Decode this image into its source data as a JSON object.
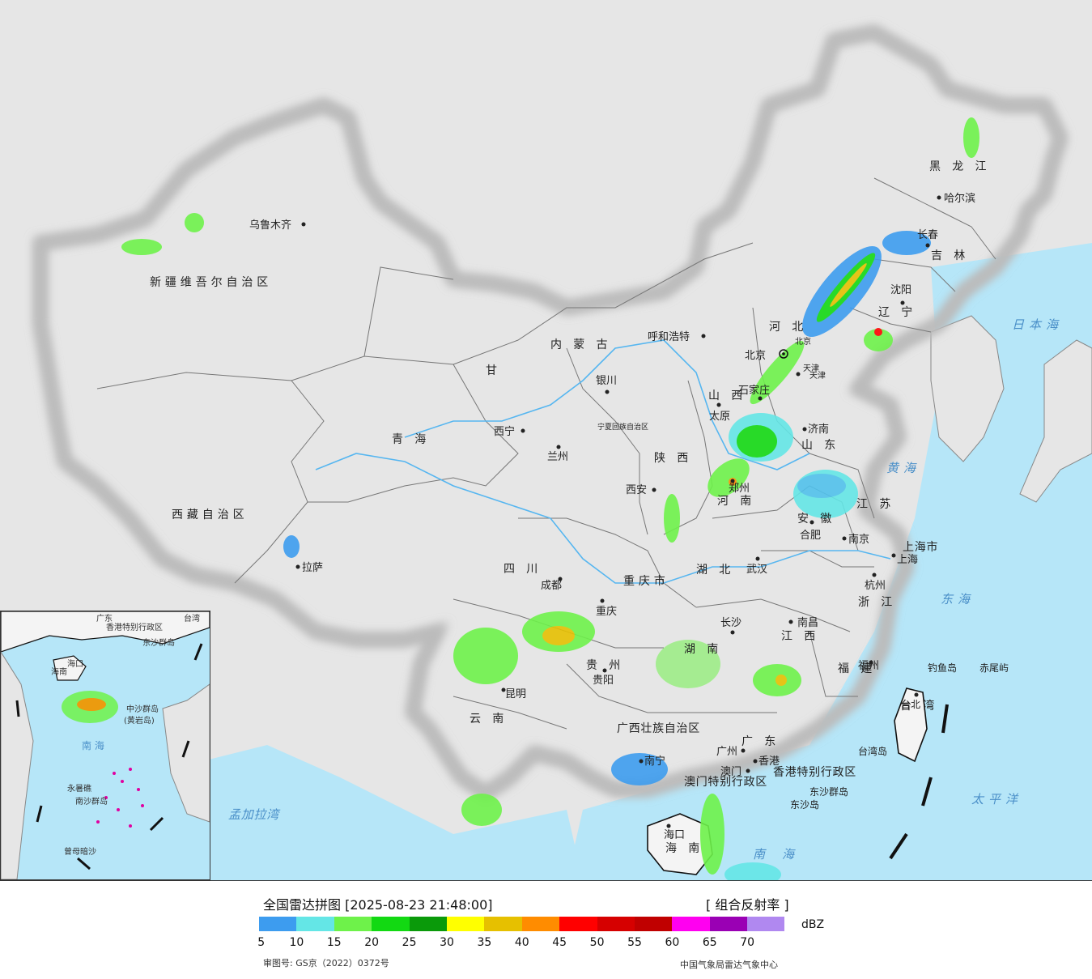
{
  "map": {
    "colors": {
      "sea": "#b6e6f8",
      "land": "#f4f4f4",
      "foreign": "#e6e6e6",
      "border": "#111111",
      "province": "#777777",
      "river": "#56b6f0"
    },
    "provinces": [
      {
        "id": "xinjiang",
        "text": "新疆维吾尔自治区"
      },
      {
        "id": "xizang",
        "text": "西藏自治区"
      },
      {
        "id": "qinghai",
        "text": "青 海"
      },
      {
        "id": "gansu",
        "text": "甘"
      },
      {
        "id": "neimenggu",
        "text": "内 蒙 古"
      },
      {
        "id": "ningxia",
        "text": "宁夏回族自治区"
      },
      {
        "id": "shaanxi",
        "text": "陕 西"
      },
      {
        "id": "shanxi",
        "text": "山 西"
      },
      {
        "id": "hebei",
        "text": "河 北"
      },
      {
        "id": "heilongjiang",
        "text": "黑 龙 江"
      },
      {
        "id": "jilin",
        "text": "吉 林"
      },
      {
        "id": "liaoning",
        "text": "辽 宁"
      },
      {
        "id": "shandong",
        "text": "山 东"
      },
      {
        "id": "henan",
        "text": "河 南"
      },
      {
        "id": "jiangsu",
        "text": "江 苏"
      },
      {
        "id": "anhui",
        "text": "安 徽"
      },
      {
        "id": "sichuan",
        "text": "四 川"
      },
      {
        "id": "chongqing",
        "text": "重庆市"
      },
      {
        "id": "hubei",
        "text": "湖 北"
      },
      {
        "id": "hunan",
        "text": "湖 南"
      },
      {
        "id": "jiangxi",
        "text": "江 西"
      },
      {
        "id": "zhejiang",
        "text": "浙 江"
      },
      {
        "id": "fujian",
        "text": "福 建"
      },
      {
        "id": "guizhou",
        "text": "贵 州"
      },
      {
        "id": "yunnan",
        "text": "云 南"
      },
      {
        "id": "guangxi",
        "text": "广西壮族自治区"
      },
      {
        "id": "guangdong",
        "text": "广 东"
      },
      {
        "id": "taiwan",
        "text": "台 湾"
      },
      {
        "id": "hainan",
        "text": "海 南"
      },
      {
        "id": "shanghai",
        "text": "上海市"
      },
      {
        "id": "xianggang",
        "text": "香港特别行政区"
      },
      {
        "id": "aomen",
        "text": "澳门特别行政区"
      },
      {
        "id": "tianjin",
        "text": "天津"
      },
      {
        "id": "beijing",
        "text": "北京"
      }
    ],
    "cities": [
      {
        "id": "urumqi",
        "text": "乌鲁木齐"
      },
      {
        "id": "lhasa",
        "text": "拉萨"
      },
      {
        "id": "xining",
        "text": "西宁"
      },
      {
        "id": "lanzhou",
        "text": "兰州"
      },
      {
        "id": "yinchuan",
        "text": "银川"
      },
      {
        "id": "hohhot",
        "text": "呼和浩特"
      },
      {
        "id": "xian",
        "text": "西安"
      },
      {
        "id": "taiyuan",
        "text": "太原"
      },
      {
        "id": "shijiazhuang",
        "text": "石家庄"
      },
      {
        "id": "beijing_c",
        "text": "北京"
      },
      {
        "id": "tianjin_c",
        "text": "天津"
      },
      {
        "id": "jinan",
        "text": "济南"
      },
      {
        "id": "zhengzhou",
        "text": "郑州"
      },
      {
        "id": "harbin",
        "text": "哈尔滨"
      },
      {
        "id": "changchun",
        "text": "长春"
      },
      {
        "id": "shenyang",
        "text": "沈阳"
      },
      {
        "id": "hefei",
        "text": "合肥"
      },
      {
        "id": "nanjing",
        "text": "南京"
      },
      {
        "id": "shanghai_c",
        "text": "上海"
      },
      {
        "id": "hangzhou",
        "text": "杭州"
      },
      {
        "id": "wuhan",
        "text": "武汉"
      },
      {
        "id": "chengdu",
        "text": "成都"
      },
      {
        "id": "chongqing_c",
        "text": "重庆"
      },
      {
        "id": "changsha",
        "text": "长沙"
      },
      {
        "id": "nanchang",
        "text": "南昌"
      },
      {
        "id": "fuzhou",
        "text": "福州"
      },
      {
        "id": "guiyang",
        "text": "贵阳"
      },
      {
        "id": "kunming",
        "text": "昆明"
      },
      {
        "id": "nanning",
        "text": "南宁"
      },
      {
        "id": "guangzhou",
        "text": "广州"
      },
      {
        "id": "macau_c",
        "text": "澳门"
      },
      {
        "id": "hongkong_c",
        "text": "香港"
      },
      {
        "id": "haikou",
        "text": "海口"
      },
      {
        "id": "taibei",
        "text": "台北"
      }
    ],
    "seas": [
      {
        "id": "japan_sea",
        "text": "日本海"
      },
      {
        "id": "yellow_sea",
        "text": "黄海"
      },
      {
        "id": "east_sea",
        "text": "东海"
      },
      {
        "id": "pacific",
        "text": "太平洋"
      },
      {
        "id": "bengal",
        "text": "孟加拉湾"
      },
      {
        "id": "south_sea",
        "text": "南海"
      }
    ],
    "islands": [
      {
        "id": "diaoyu",
        "text": "钓鱼岛"
      },
      {
        "id": "chiwei",
        "text": "赤尾屿"
      },
      {
        "id": "taiwan_dao",
        "text": "台湾岛"
      },
      {
        "id": "dongsha_qundao",
        "text": "东沙群岛"
      },
      {
        "id": "dongsha_dao",
        "text": "东沙岛"
      }
    ],
    "inset": {
      "labels": [
        {
          "id": "i_hk",
          "text": "香港特别行政区"
        },
        {
          "id": "i_gd",
          "text": "广东"
        },
        {
          "id": "i_haikou",
          "text": "海口"
        },
        {
          "id": "i_hn",
          "text": "海南"
        },
        {
          "id": "i_dongsha",
          "text": "东沙群岛"
        },
        {
          "id": "i_zhongsha",
          "text": "中沙群岛"
        },
        {
          "id": "i_huangyan",
          "text": "(黄岩岛)"
        },
        {
          "id": "i_nanhai",
          "text": "南 海"
        },
        {
          "id": "i_yongshu",
          "text": "永暑礁"
        },
        {
          "id": "i_nansha",
          "text": "南沙群岛"
        },
        {
          "id": "i_zengmu",
          "text": "曾母暗沙"
        },
        {
          "id": "i_tw",
          "text": "台湾"
        }
      ]
    }
  },
  "legend": {
    "title": "全国雷达拼图 [2025-08-23 21:48:00]",
    "product": "[ 组合反射率 ]",
    "unit": "dBZ",
    "colors": [
      "#3d9cef",
      "#64e6e6",
      "#6ef24a",
      "#12d912",
      "#0a9a0a",
      "#ffff00",
      "#e6c000",
      "#ff8c00",
      "#ff0000",
      "#d60000",
      "#c00000",
      "#ff00f0",
      "#9a00b4",
      "#b088f0"
    ],
    "ticks": [
      "5",
      "10",
      "15",
      "20",
      "25",
      "30",
      "35",
      "40",
      "45",
      "50",
      "55",
      "60",
      "65",
      "70"
    ],
    "approval": "审图号: GS京（2022）0372号",
    "credit": "中国气象局雷达气象中心"
  }
}
